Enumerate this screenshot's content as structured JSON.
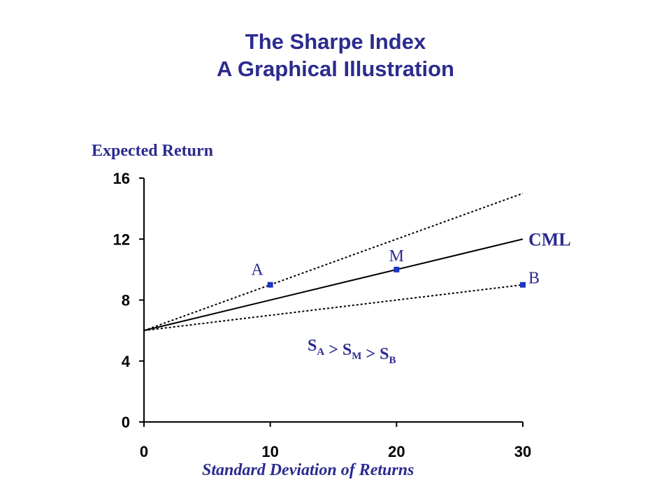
{
  "title_line1": "The Sharpe Index",
  "title_line2": "A Graphical Illustration",
  "colors": {
    "accent": "#2b2b8f",
    "axis": "#000000",
    "marker": "#1a35c0"
  },
  "chart_data": {
    "type": "line",
    "title": "The Sharpe Index A Graphical Illustration",
    "xlabel": "Standard Deviation of Returns",
    "ylabel": "Expected Return",
    "xlim": [
      0,
      30
    ],
    "ylim": [
      0,
      16
    ],
    "xticks": [
      0,
      10,
      20,
      30
    ],
    "yticks": [
      0,
      4,
      8,
      12,
      16
    ],
    "grid": false,
    "series": [
      {
        "name": "CML",
        "style": "solid",
        "x": [
          0,
          30
        ],
        "y": [
          6,
          12
        ]
      },
      {
        "style": "dotted",
        "x": [
          0,
          30
        ],
        "y": [
          6,
          15
        ]
      },
      {
        "style": "dotted",
        "x": [
          0,
          30
        ],
        "y": [
          6,
          9
        ]
      }
    ],
    "points": [
      {
        "label": "A",
        "x": 10,
        "y": 9
      },
      {
        "label": "M",
        "x": 20,
        "y": 10
      },
      {
        "label": "B",
        "x": 30,
        "y": 9
      }
    ],
    "annotation": {
      "parts": [
        {
          "t": "S",
          "sub": "A"
        },
        {
          "t": " > S",
          "sub": "M"
        },
        {
          "t": " > S",
          "sub": "B"
        }
      ]
    }
  }
}
